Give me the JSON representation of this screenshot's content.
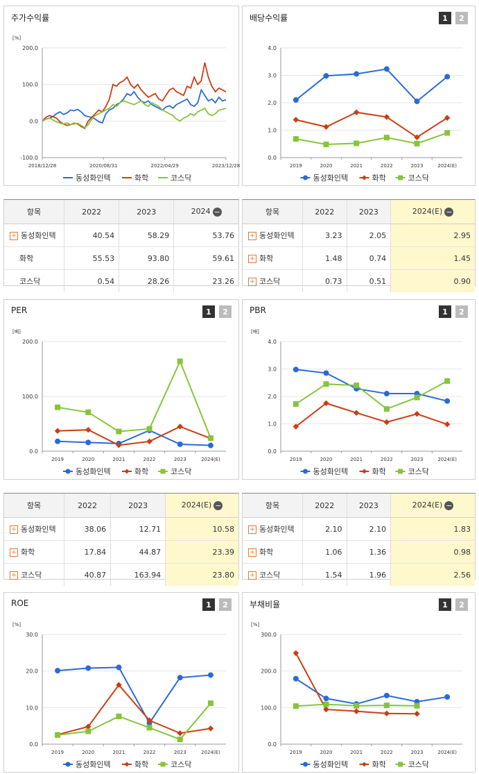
{
  "colors": {
    "dongsung": "#2a6ad8",
    "hwahak": "#cc3d13",
    "kosdaq": "#86c43b"
  },
  "legend": [
    "동성화인텍",
    "화학",
    "코스닥"
  ],
  "panels": {
    "stock": {
      "title": "주가수익률"
    },
    "div": {
      "title": "배당수익률"
    },
    "per": {
      "title": "PER"
    },
    "pbr": {
      "title": "PBR"
    },
    "roe": {
      "title": "ROE"
    },
    "debt": {
      "title": "부채비율"
    }
  },
  "buttons": [
    "1",
    "2"
  ],
  "chart_data": [
    {
      "id": "stock",
      "type": "line",
      "unit": "[%]",
      "ylim": [
        -100,
        200
      ],
      "yticks": [
        "200.0",
        "100.0",
        "0.0",
        "-100.0"
      ],
      "xlabels": [
        "2018/12/28",
        "2020/08/31",
        "2022/04/29",
        "2023/12/28"
      ],
      "series": [
        {
          "name": "동성화인텍",
          "values": [
            0,
            5,
            8,
            12,
            20,
            25,
            18,
            22,
            30,
            28,
            32,
            25,
            15,
            12,
            10,
            5,
            -2,
            -5,
            20,
            30,
            35,
            45,
            50,
            60,
            75,
            70,
            80,
            65,
            55,
            50,
            55,
            45,
            40,
            35,
            30,
            38,
            42,
            35,
            45,
            50,
            55,
            60,
            45,
            40,
            50,
            85,
            70,
            55,
            60,
            50,
            65,
            55,
            58
          ]
        },
        {
          "name": "화학",
          "values": [
            0,
            10,
            15,
            12,
            8,
            -2,
            -8,
            -12,
            -10,
            -6,
            -8,
            -15,
            -20,
            0,
            10,
            20,
            30,
            25,
            40,
            60,
            100,
            95,
            105,
            110,
            120,
            100,
            90,
            100,
            85,
            75,
            65,
            70,
            75,
            60,
            55,
            70,
            85,
            90,
            80,
            75,
            70,
            95,
            90,
            120,
            100,
            110,
            160,
            120,
            95,
            80,
            90,
            85,
            80
          ]
        },
        {
          "name": "코스닥",
          "values": [
            0,
            5,
            8,
            3,
            -2,
            -6,
            -8,
            -5,
            -10,
            -8,
            -6,
            -12,
            -18,
            -10,
            5,
            15,
            20,
            25,
            30,
            35,
            45,
            40,
            50,
            55,
            52,
            48,
            45,
            50,
            55,
            45,
            40,
            50,
            45,
            40,
            30,
            25,
            20,
            15,
            5,
            0,
            8,
            12,
            20,
            15,
            25,
            30,
            35,
            20,
            15,
            20,
            30,
            32,
            35
          ]
        }
      ]
    },
    {
      "id": "div",
      "type": "line",
      "unit": "",
      "ylim": [
        0,
        4
      ],
      "yticks": [
        "4.0",
        "3.0",
        "2.0",
        "1.0",
        "0.0"
      ],
      "categories": [
        "2019",
        "2020",
        "2021",
        "2022",
        "2023",
        "2024(E)"
      ],
      "series": [
        {
          "name": "동성화인텍",
          "values": [
            2.1,
            2.98,
            3.05,
            3.23,
            2.05,
            2.95
          ]
        },
        {
          "name": "화학",
          "values": [
            1.38,
            1.12,
            1.65,
            1.48,
            0.74,
            1.45
          ]
        },
        {
          "name": "코스닥",
          "values": [
            0.68,
            0.48,
            0.52,
            0.73,
            0.51,
            0.9
          ]
        }
      ]
    },
    {
      "id": "per",
      "type": "line",
      "unit": "[배]",
      "ylim": [
        0,
        200
      ],
      "yticks": [
        "200.0",
        "100.0",
        "0.0"
      ],
      "categories": [
        "2019",
        "2020",
        "2021",
        "2022",
        "2023",
        "2024(E)"
      ],
      "series": [
        {
          "name": "동성화인텍",
          "values": [
            18,
            16,
            14,
            38.06,
            12.71,
            10.58
          ]
        },
        {
          "name": "화학",
          "values": [
            37,
            39,
            11,
            17.84,
            44.87,
            23.39
          ]
        },
        {
          "name": "코스닥",
          "values": [
            80,
            71,
            36,
            40.87,
            163.94,
            23.8
          ]
        }
      ]
    },
    {
      "id": "pbr",
      "type": "line",
      "unit": "[배]",
      "ylim": [
        0,
        4
      ],
      "yticks": [
        "4.0",
        "3.0",
        "2.0",
        "1.0",
        "0.0"
      ],
      "categories": [
        "2019",
        "2020",
        "2021",
        "2022",
        "2023",
        "2024(E)"
      ],
      "series": [
        {
          "name": "동성화인텍",
          "values": [
            2.98,
            2.85,
            2.28,
            2.1,
            2.1,
            1.83
          ]
        },
        {
          "name": "화학",
          "values": [
            0.9,
            1.75,
            1.4,
            1.06,
            1.36,
            0.98
          ]
        },
        {
          "name": "코스닥",
          "values": [
            1.72,
            2.45,
            2.4,
            1.54,
            1.96,
            2.56
          ]
        }
      ]
    },
    {
      "id": "roe",
      "type": "line",
      "unit": "[%]",
      "ylim": [
        0,
        30
      ],
      "yticks": [
        "30.0",
        "20.0",
        "10.0",
        "0.0"
      ],
      "categories": [
        "2019",
        "2020",
        "2021",
        "2022",
        "2023",
        "2024(E)"
      ],
      "series": [
        {
          "name": "동성화인텍",
          "values": [
            20.1,
            20.8,
            21.0,
            5.8,
            18.2,
            18.9
          ]
        },
        {
          "name": "화학",
          "values": [
            2.6,
            4.8,
            16.2,
            6.5,
            3.0,
            4.3
          ]
        },
        {
          "name": "코스닥",
          "values": [
            2.5,
            3.5,
            7.6,
            4.5,
            1.3,
            11.2
          ]
        }
      ]
    },
    {
      "id": "debt",
      "type": "line",
      "unit": "[%]",
      "ylim": [
        0,
        300
      ],
      "yticks": [
        "300.0",
        "200.0",
        "100.0",
        "0.0"
      ],
      "categories": [
        "2019",
        "2020",
        "2021",
        "2022",
        "2023",
        "2024(E)"
      ],
      "series": [
        {
          "name": "동성화인텍",
          "values": [
            179,
            125,
            110,
            133,
            116,
            129
          ]
        },
        {
          "name": "화학",
          "values": [
            249,
            95,
            90,
            84,
            83,
            null
          ]
        },
        {
          "name": "코스닥",
          "values": [
            104,
            109,
            105,
            106,
            105,
            null
          ]
        }
      ]
    }
  ],
  "tables": {
    "t1": {
      "head": [
        "항목",
        "2022",
        "2023",
        "2024"
      ],
      "rows": [
        {
          "name": "동성화인텍",
          "plus": true,
          "v": [
            "40.54",
            "58.29",
            "53.76"
          ]
        },
        {
          "name": "화학",
          "plus": false,
          "v": [
            "55.53",
            "93.80",
            "59.61"
          ]
        },
        {
          "name": "코스닥",
          "plus": false,
          "v": [
            "0.54",
            "28.26",
            "23.26"
          ]
        }
      ]
    },
    "t2": {
      "head": [
        "항목",
        "2022",
        "2023",
        "2024(E)"
      ],
      "rows": [
        {
          "name": "동성화인텍",
          "plus": true,
          "v": [
            "3.23",
            "2.05",
            "2.95"
          ]
        },
        {
          "name": "화학",
          "plus": true,
          "v": [
            "1.48",
            "0.74",
            "1.45"
          ]
        },
        {
          "name": "코스닥",
          "plus": true,
          "v": [
            "0.73",
            "0.51",
            "0.90"
          ]
        }
      ]
    },
    "t3": {
      "head": [
        "항목",
        "2022",
        "2023",
        "2024(E)"
      ],
      "rows": [
        {
          "name": "동성화인텍",
          "plus": true,
          "v": [
            "38.06",
            "12.71",
            "10.58"
          ]
        },
        {
          "name": "화학",
          "plus": true,
          "v": [
            "17.84",
            "44.87",
            "23.39"
          ]
        },
        {
          "name": "코스닥",
          "plus": true,
          "v": [
            "40.87",
            "163.94",
            "23.80"
          ]
        }
      ]
    },
    "t4": {
      "head": [
        "항목",
        "2022",
        "2023",
        "2024(E)"
      ],
      "rows": [
        {
          "name": "동성화인텍",
          "plus": true,
          "v": [
            "2.10",
            "2.10",
            "1.83"
          ]
        },
        {
          "name": "화학",
          "plus": true,
          "v": [
            "1.06",
            "1.36",
            "0.98"
          ]
        },
        {
          "name": "코스닥",
          "plus": true,
          "v": [
            "1.54",
            "1.96",
            "2.56"
          ]
        }
      ]
    }
  }
}
